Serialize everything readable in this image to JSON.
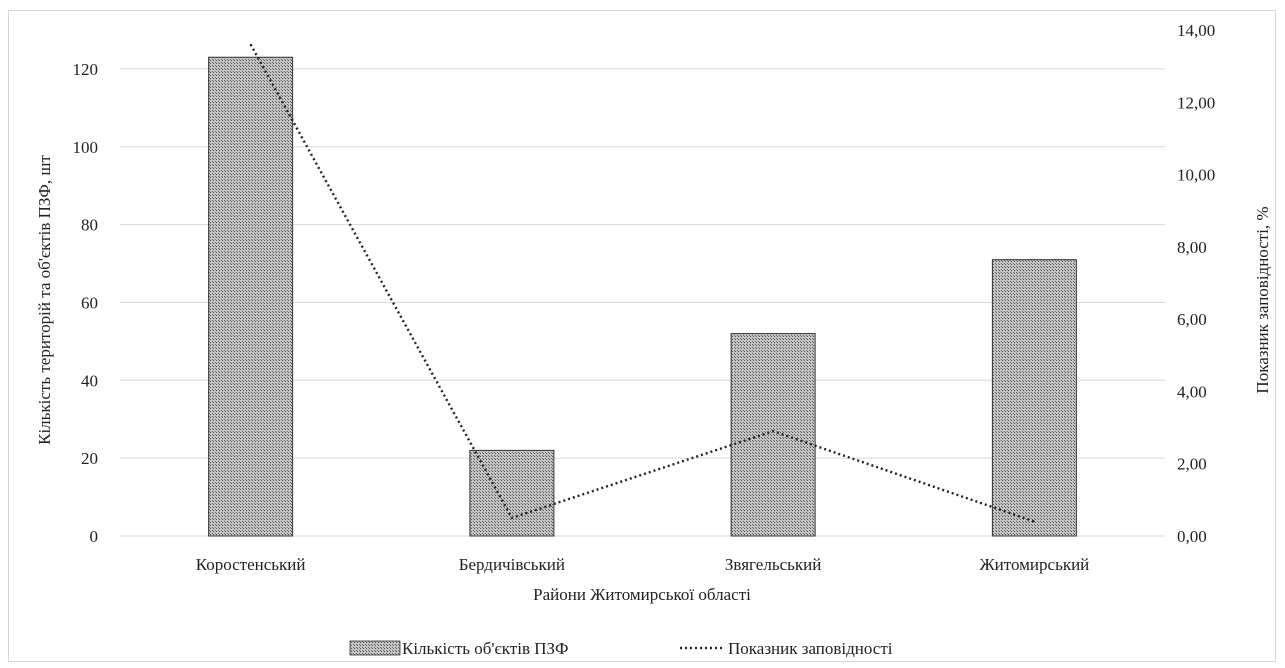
{
  "chart_data": {
    "type": "bar",
    "categories": [
      "Коростенський",
      "Бердичівський",
      "Звягельський",
      "Житомирський"
    ],
    "series": [
      {
        "name": "Кількість об'єктів ПЗФ",
        "type": "bar",
        "axis": "left",
        "values": [
          123,
          22,
          52,
          71
        ]
      },
      {
        "name": "Показник заповідності",
        "type": "line",
        "axis": "right",
        "values": [
          13.6,
          0.5,
          2.9,
          0.4
        ]
      }
    ],
    "xlabel": "Райони Житомирської області",
    "ylabel": "Кількість територій та об'єктів ПЗФ, шт",
    "y2label": "Показник заповідності, %",
    "ylim": [
      0,
      130
    ],
    "yticks": [
      "0",
      "20",
      "40",
      "60",
      "80",
      "100",
      "120"
    ],
    "y2lim": [
      0,
      14
    ],
    "y2ticks": [
      "0,00",
      "2,00",
      "4,00",
      "6,00",
      "8,00",
      "10,00",
      "12,00",
      "14,00"
    ],
    "grid": true,
    "legend": "bottom",
    "colors": {
      "bar_fill": "#bcbcbc",
      "bar_stroke": "#333333",
      "line": "#222222",
      "grid": "#d9d9d9"
    }
  }
}
